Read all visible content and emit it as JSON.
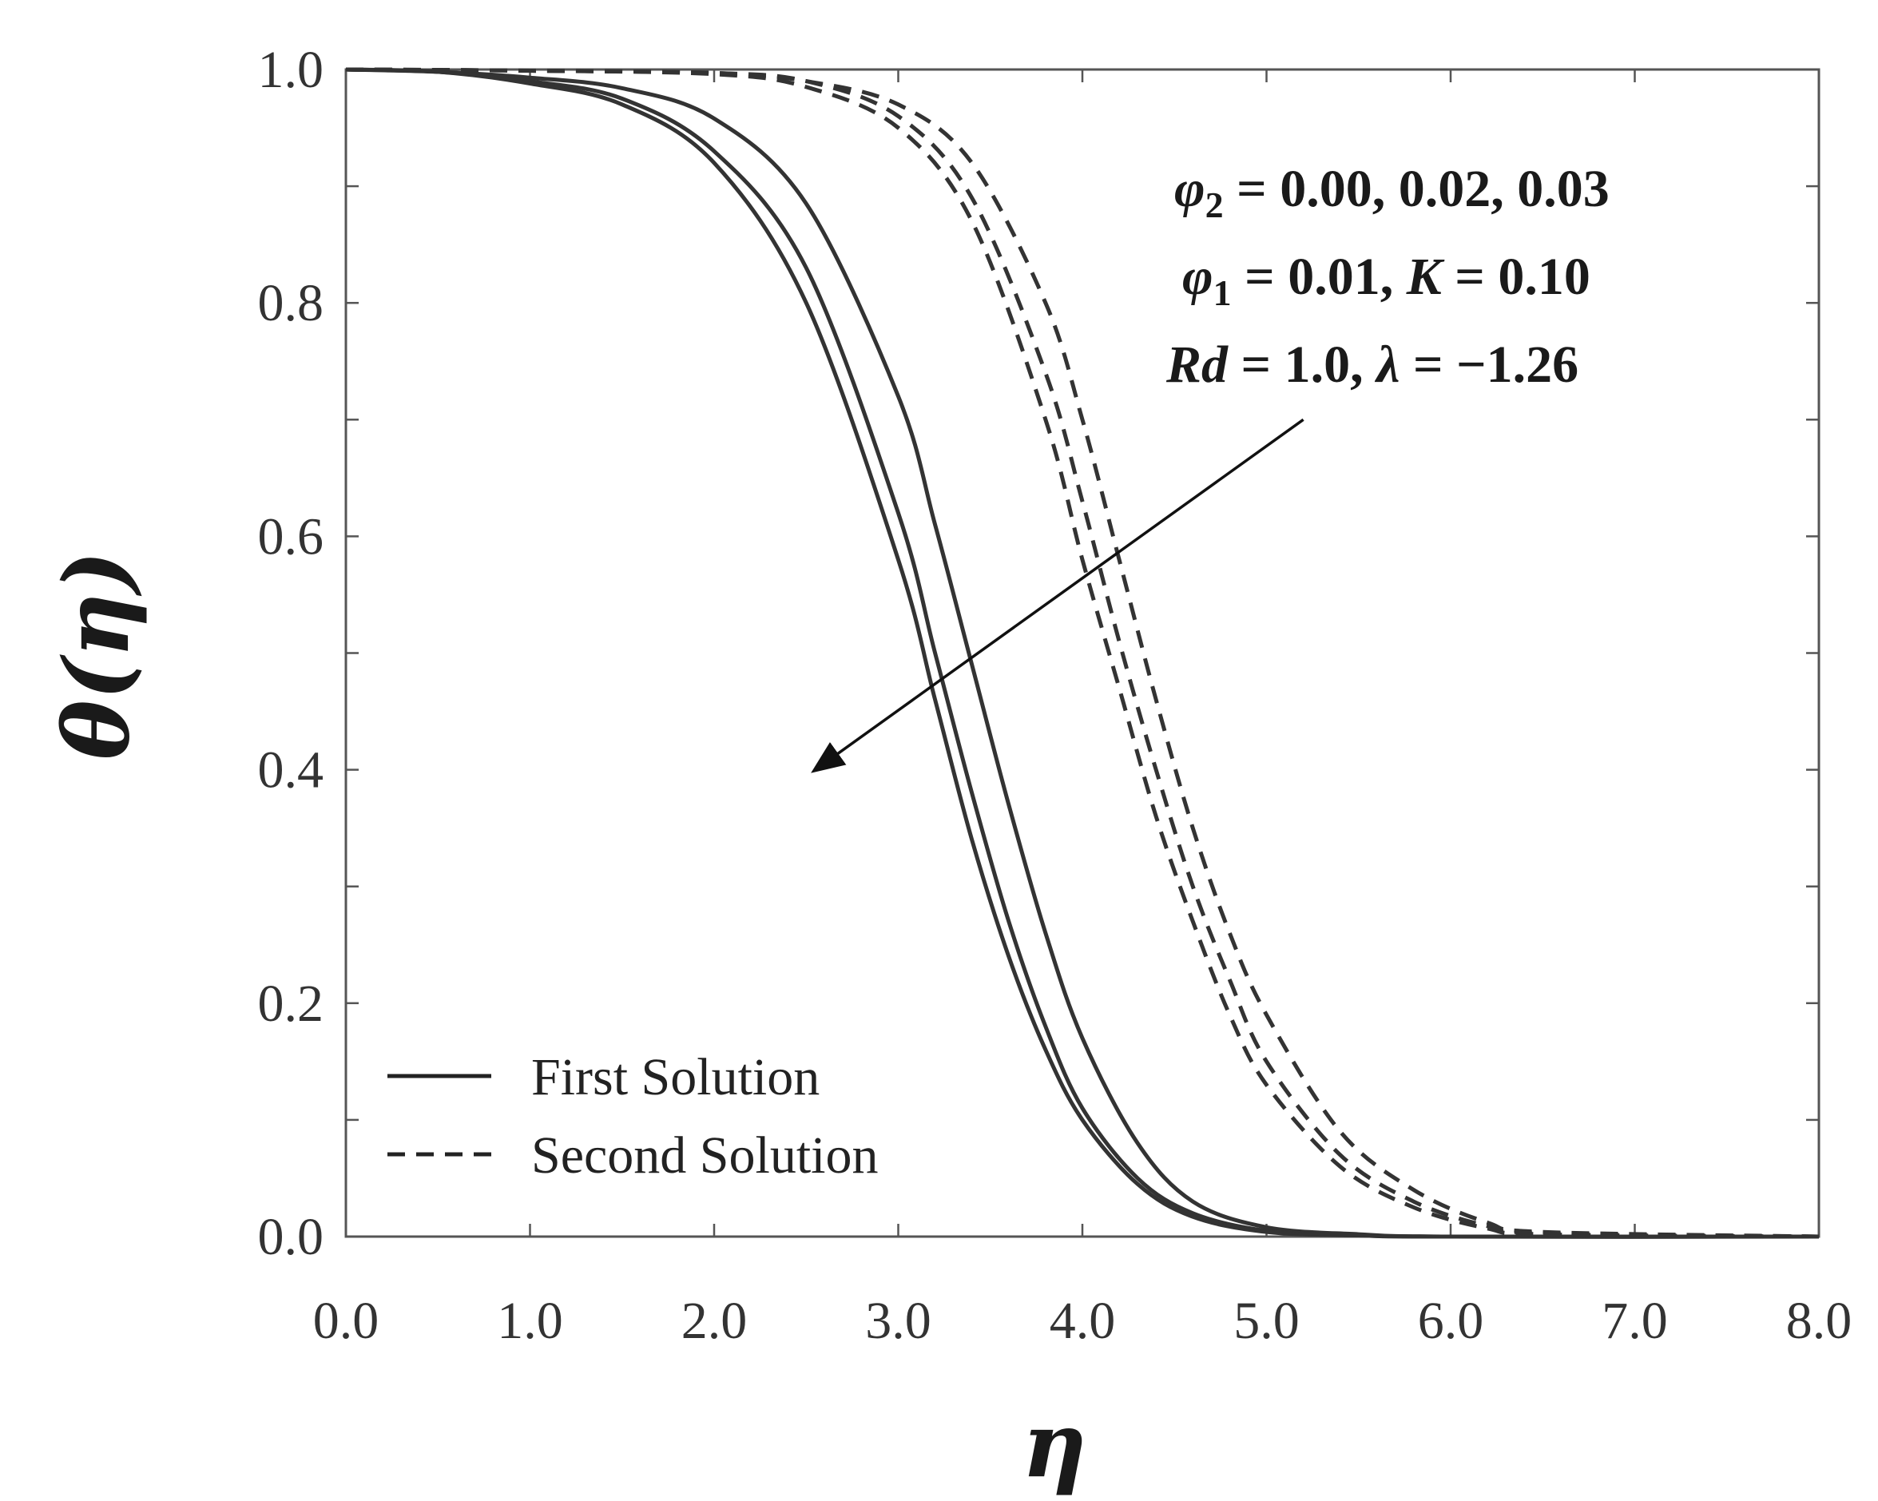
{
  "chart_data": {
    "type": "line",
    "xlabel": "η",
    "ylabel": "θ(η)",
    "xlim": [
      0,
      8
    ],
    "ylim": [
      0,
      1
    ],
    "x_ticks": [
      0,
      1,
      2,
      3,
      4,
      5,
      6,
      7,
      8
    ],
    "x_tick_labels": [
      "0.0",
      "1.0",
      "2.0",
      "3.0",
      "4.0",
      "5.0",
      "6.0",
      "7.0",
      "8.0"
    ],
    "y_ticks": [
      0,
      0.2,
      0.4,
      0.6,
      0.8,
      1.0
    ],
    "y_tick_labels": [
      "0.0",
      "0.2",
      "0.4",
      "0.6",
      "0.8",
      "1.0"
    ],
    "grid": false,
    "legend_position": "bottom-left",
    "legend": [
      {
        "label": "First Solution",
        "style": "solid"
      },
      {
        "label": "Second Solution",
        "style": "dashed"
      }
    ],
    "annotation": {
      "line1": {
        "sym": "φ",
        "sub": "2",
        "rest": " = 0.00,  0.02,  0.03"
      },
      "line2": {
        "sym": "φ",
        "sub": "1",
        "mid": " = 0.01, ",
        "sym2": "K",
        "rest": " = 0.10"
      },
      "line3": {
        "sym": "Rd",
        "mid": " = 1.0,  ",
        "sym2": "λ",
        "rest": " = −1.26"
      },
      "arrow": {
        "from": [
          5.2,
          0.7
        ],
        "to": [
          2.55,
          0.4
        ]
      }
    },
    "series": [
      {
        "style": "solid",
        "x": [
          0,
          0.5,
          1.0,
          1.5,
          2.0,
          2.5,
          3.0,
          3.2,
          3.4,
          3.6,
          3.8,
          4.0,
          4.3,
          4.6,
          5.0,
          5.5,
          6.0,
          8.0
        ],
        "y": [
          1.0,
          0.998,
          0.993,
          0.984,
          0.958,
          0.885,
          0.72,
          0.61,
          0.49,
          0.37,
          0.26,
          0.17,
          0.08,
          0.03,
          0.008,
          0.002,
          0.0,
          0.0
        ]
      },
      {
        "style": "solid",
        "x": [
          0,
          0.5,
          1.0,
          1.5,
          2.0,
          2.5,
          3.0,
          3.2,
          3.4,
          3.6,
          3.8,
          4.0,
          4.3,
          4.6,
          5.0,
          5.5,
          6.0,
          8.0
        ],
        "y": [
          1.0,
          0.998,
          0.99,
          0.975,
          0.93,
          0.83,
          0.62,
          0.5,
          0.38,
          0.27,
          0.18,
          0.11,
          0.05,
          0.02,
          0.005,
          0.001,
          0.0,
          0.0
        ]
      },
      {
        "style": "solid",
        "x": [
          0,
          0.5,
          1.0,
          1.5,
          2.0,
          2.5,
          3.0,
          3.2,
          3.4,
          3.6,
          3.8,
          4.0,
          4.3,
          4.6,
          5.0,
          5.5,
          6.0,
          8.0
        ],
        "y": [
          1.0,
          0.998,
          0.988,
          0.97,
          0.92,
          0.8,
          0.58,
          0.46,
          0.34,
          0.24,
          0.16,
          0.1,
          0.045,
          0.017,
          0.004,
          0.001,
          0.0,
          0.0
        ]
      },
      {
        "style": "dashed",
        "x": [
          0,
          1.0,
          2.0,
          2.5,
          3.0,
          3.4,
          3.8,
          4.0,
          4.2,
          4.4,
          4.6,
          4.8,
          5.0,
          5.4,
          5.8,
          6.2,
          6.5,
          8.0
        ],
        "y": [
          1.0,
          0.999,
          0.997,
          0.99,
          0.97,
          0.92,
          0.8,
          0.7,
          0.58,
          0.46,
          0.35,
          0.26,
          0.19,
          0.09,
          0.04,
          0.012,
          0.004,
          0.0
        ]
      },
      {
        "style": "dashed",
        "x": [
          0,
          1.0,
          2.0,
          2.5,
          3.0,
          3.4,
          3.8,
          4.0,
          4.2,
          4.4,
          4.6,
          4.8,
          5.0,
          5.4,
          5.8,
          6.2,
          6.5,
          8.0
        ],
        "y": [
          1.0,
          0.999,
          0.997,
          0.99,
          0.96,
          0.89,
          0.74,
          0.63,
          0.51,
          0.4,
          0.3,
          0.22,
          0.15,
          0.07,
          0.03,
          0.009,
          0.003,
          0.0
        ]
      },
      {
        "style": "dashed",
        "x": [
          0,
          1.0,
          2.0,
          2.5,
          3.0,
          3.4,
          3.8,
          4.0,
          4.2,
          4.4,
          4.6,
          4.8,
          5.0,
          5.4,
          5.8,
          6.2,
          6.5,
          8.0
        ],
        "y": [
          1.0,
          0.999,
          0.996,
          0.985,
          0.95,
          0.87,
          0.7,
          0.58,
          0.47,
          0.36,
          0.27,
          0.19,
          0.13,
          0.06,
          0.025,
          0.007,
          0.002,
          0.0
        ]
      }
    ]
  }
}
